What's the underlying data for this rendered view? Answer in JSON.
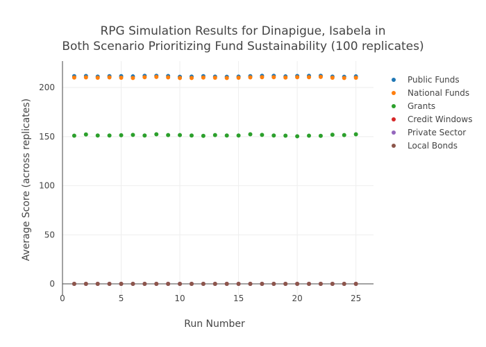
{
  "chart_data": {
    "type": "scatter",
    "title_lines": [
      "RPG Simulation Results for Dinapigue, Isabela in",
      "Both Scenario Prioritizing Fund Sustainability (100 replicates)"
    ],
    "xlabel": "Run Number",
    "ylabel": "Average Score (across replicates)",
    "xlim": [
      0,
      26.5
    ],
    "ylim": [
      -12,
      227
    ],
    "x_ticks": [
      0,
      5,
      10,
      15,
      20,
      25
    ],
    "y_ticks": [
      0,
      50,
      100,
      150,
      200
    ],
    "grid": true,
    "legend_position": "top-right",
    "x": [
      1,
      2,
      3,
      4,
      5,
      6,
      7,
      8,
      9,
      10,
      11,
      12,
      13,
      14,
      15,
      16,
      17,
      18,
      19,
      20,
      21,
      22,
      23,
      24,
      25
    ],
    "series": [
      {
        "name": "Public Funds",
        "color": "#1f77b4",
        "values": [
          211.6,
          211.8,
          211.2,
          211.6,
          211.6,
          211.4,
          212.0,
          212.0,
          211.8,
          211.0,
          211.2,
          211.6,
          211.2,
          211.0,
          211.2,
          211.6,
          212.0,
          212.0,
          211.4,
          211.8,
          212.0,
          212.0,
          211.2,
          211.0,
          211.4
        ]
      },
      {
        "name": "National Funds",
        "color": "#ff7f0e",
        "values": [
          210.2,
          210.4,
          210.0,
          210.4,
          210.0,
          209.8,
          210.6,
          210.8,
          210.4,
          209.8,
          209.8,
          210.2,
          210.0,
          209.8,
          210.0,
          210.4,
          210.6,
          210.6,
          210.2,
          210.6,
          210.6,
          210.8,
          210.0,
          209.8,
          210.0
        ]
      },
      {
        "name": "Grants",
        "color": "#2ca02c",
        "values": [
          151.0,
          152.2,
          151.2,
          151.2,
          151.4,
          151.8,
          151.2,
          152.4,
          151.6,
          151.6,
          151.2,
          150.8,
          151.6,
          151.2,
          151.2,
          152.4,
          151.8,
          151.2,
          151.0,
          150.4,
          151.0,
          150.8,
          152.0,
          151.6,
          152.4
        ]
      },
      {
        "name": "Credit Windows",
        "color": "#d62728",
        "values": [
          0,
          0,
          0,
          0,
          0,
          0,
          0,
          0,
          0,
          0,
          0,
          0,
          0,
          0,
          0,
          0,
          0,
          0,
          0,
          0,
          0,
          0,
          0,
          0,
          0
        ]
      },
      {
        "name": "Private Sector",
        "color": "#9467bd",
        "values": [
          0,
          0,
          0,
          0,
          0,
          0,
          0,
          0,
          0,
          0,
          0,
          0,
          0,
          0,
          0,
          0,
          0,
          0,
          0,
          0,
          0,
          0,
          0,
          0,
          0
        ]
      },
      {
        "name": "Local Bonds",
        "color": "#8c564b",
        "values": [
          0,
          0,
          0,
          0,
          0,
          0,
          0,
          0,
          0,
          0,
          0,
          0,
          0,
          0,
          0,
          0,
          0,
          0,
          0,
          0,
          0,
          0,
          0,
          0,
          0
        ]
      }
    ]
  }
}
